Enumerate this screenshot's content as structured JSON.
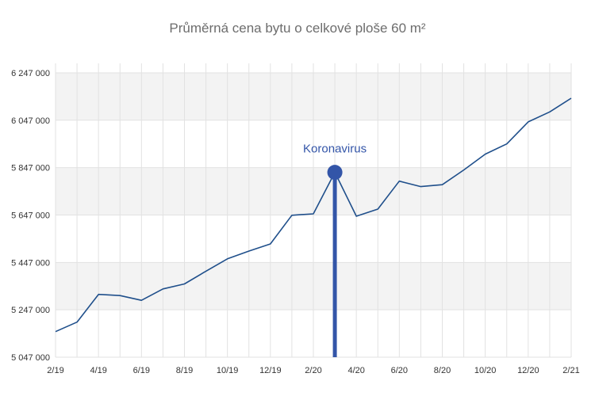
{
  "chart_data": {
    "type": "line",
    "title": "Průměrná cena bytu o celkové ploše 60 m²",
    "xlabel": "",
    "ylabel": "",
    "x_range": [
      "2019-02",
      "2021-02"
    ],
    "ylim": [
      5047000,
      6287000
    ],
    "y_ticks": [
      5047000,
      5247000,
      5447000,
      5647000,
      5847000,
      6047000,
      6247000
    ],
    "y_tick_labels": [
      "5 047 000",
      "5 247 000",
      "5 447 000",
      "5 647 000",
      "5 847 000",
      "6 047 000",
      "6 247 000"
    ],
    "x_tick_labels": [
      "2/19",
      "4/19",
      "6/19",
      "8/19",
      "10/19",
      "12/19",
      "2/20",
      "4/20",
      "6/20",
      "8/20",
      "10/20",
      "12/20",
      "2/21"
    ],
    "grid": true,
    "series": [
      {
        "x": [
          "2019-02",
          "2019-03",
          "2019-04",
          "2019-05",
          "2019-06",
          "2019-07",
          "2019-08",
          "2019-09",
          "2019-10",
          "2019-11",
          "2019-12",
          "2020-01",
          "2020-02",
          "2020-03",
          "2020-04",
          "2020-05",
          "2020-06",
          "2020-07",
          "2020-08",
          "2020-09",
          "2020-10",
          "2020-11",
          "2020-12",
          "2021-01",
          "2021-02"
        ],
        "values": [
          5155000,
          5195000,
          5312000,
          5307000,
          5287000,
          5335000,
          5356000,
          5410000,
          5462000,
          5495000,
          5525000,
          5646000,
          5652000,
          5827000,
          5642000,
          5672000,
          5790000,
          5767000,
          5775000,
          5837000,
          5904000,
          5947000,
          6040000,
          6082000,
          6140000
        ],
        "color": "#1f4f8b"
      }
    ],
    "annotation": {
      "label": "Koronavirus",
      "x": "2020-03",
      "y": 5827000,
      "color": "#3355a8"
    },
    "colors": {
      "band": "#f3f3f3",
      "grid": "#e2e2e2"
    }
  }
}
